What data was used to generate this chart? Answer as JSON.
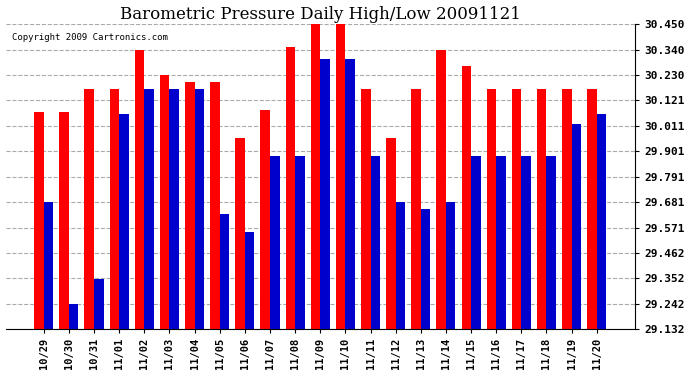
{
  "title": "Barometric Pressure Daily High/Low 20091121",
  "copyright": "Copyright 2009 Cartronics.com",
  "background_color": "#ffffff",
  "plot_bg_color": "#ffffff",
  "grid_color": "#aaaaaa",
  "bar_width": 0.38,
  "ylim": [
    29.132,
    30.45
  ],
  "yticks": [
    29.132,
    29.242,
    29.352,
    29.462,
    29.571,
    29.681,
    29.791,
    29.901,
    30.011,
    30.121,
    30.23,
    30.34,
    30.45
  ],
  "categories": [
    "10/29",
    "10/30",
    "10/31",
    "11/01",
    "11/02",
    "11/03",
    "11/04",
    "11/05",
    "11/06",
    "11/07",
    "11/08",
    "11/09",
    "11/10",
    "11/11",
    "11/12",
    "11/13",
    "11/14",
    "11/15",
    "11/16",
    "11/17",
    "11/18",
    "11/19",
    "11/20"
  ],
  "highs": [
    30.07,
    30.07,
    30.17,
    30.17,
    30.34,
    30.23,
    30.2,
    30.2,
    29.96,
    30.08,
    30.35,
    30.46,
    30.46,
    30.17,
    29.96,
    30.17,
    30.34,
    30.27,
    30.17,
    30.17,
    30.17,
    30.17,
    30.17
  ],
  "lows": [
    29.68,
    29.24,
    29.35,
    30.06,
    30.17,
    30.17,
    30.17,
    29.63,
    29.55,
    29.88,
    29.88,
    30.3,
    30.3,
    29.88,
    29.68,
    29.65,
    29.68,
    29.88,
    29.88,
    29.88,
    29.88,
    30.02,
    30.06
  ],
  "high_color": "#ff0000",
  "low_color": "#0000cc",
  "title_fontsize": 12,
  "tick_fontsize": 8,
  "xtick_fontsize": 7.5
}
